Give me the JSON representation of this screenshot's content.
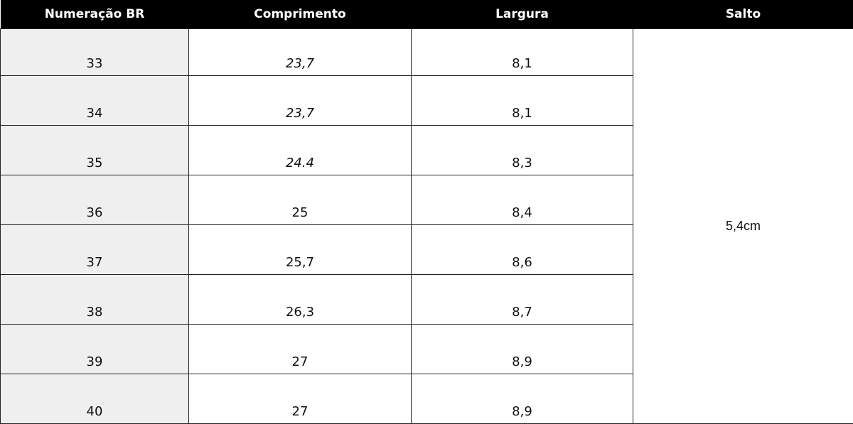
{
  "header": [
    "Numeração BR",
    "Comprimento",
    "Largura",
    "Salto"
  ],
  "rows": [
    [
      "33",
      "23,7",
      "8,1"
    ],
    [
      "34",
      "23,7",
      "8,1"
    ],
    [
      "35",
      "24.4",
      "8,3"
    ],
    [
      "36",
      "25",
      "8,4"
    ],
    [
      "37",
      "25,7",
      "8,6"
    ],
    [
      "38",
      "26,3",
      "8,7"
    ],
    [
      "39",
      "27",
      "8,9"
    ],
    [
      "40",
      "27",
      "8,9"
    ]
  ],
  "salto": "5,4cm"
}
